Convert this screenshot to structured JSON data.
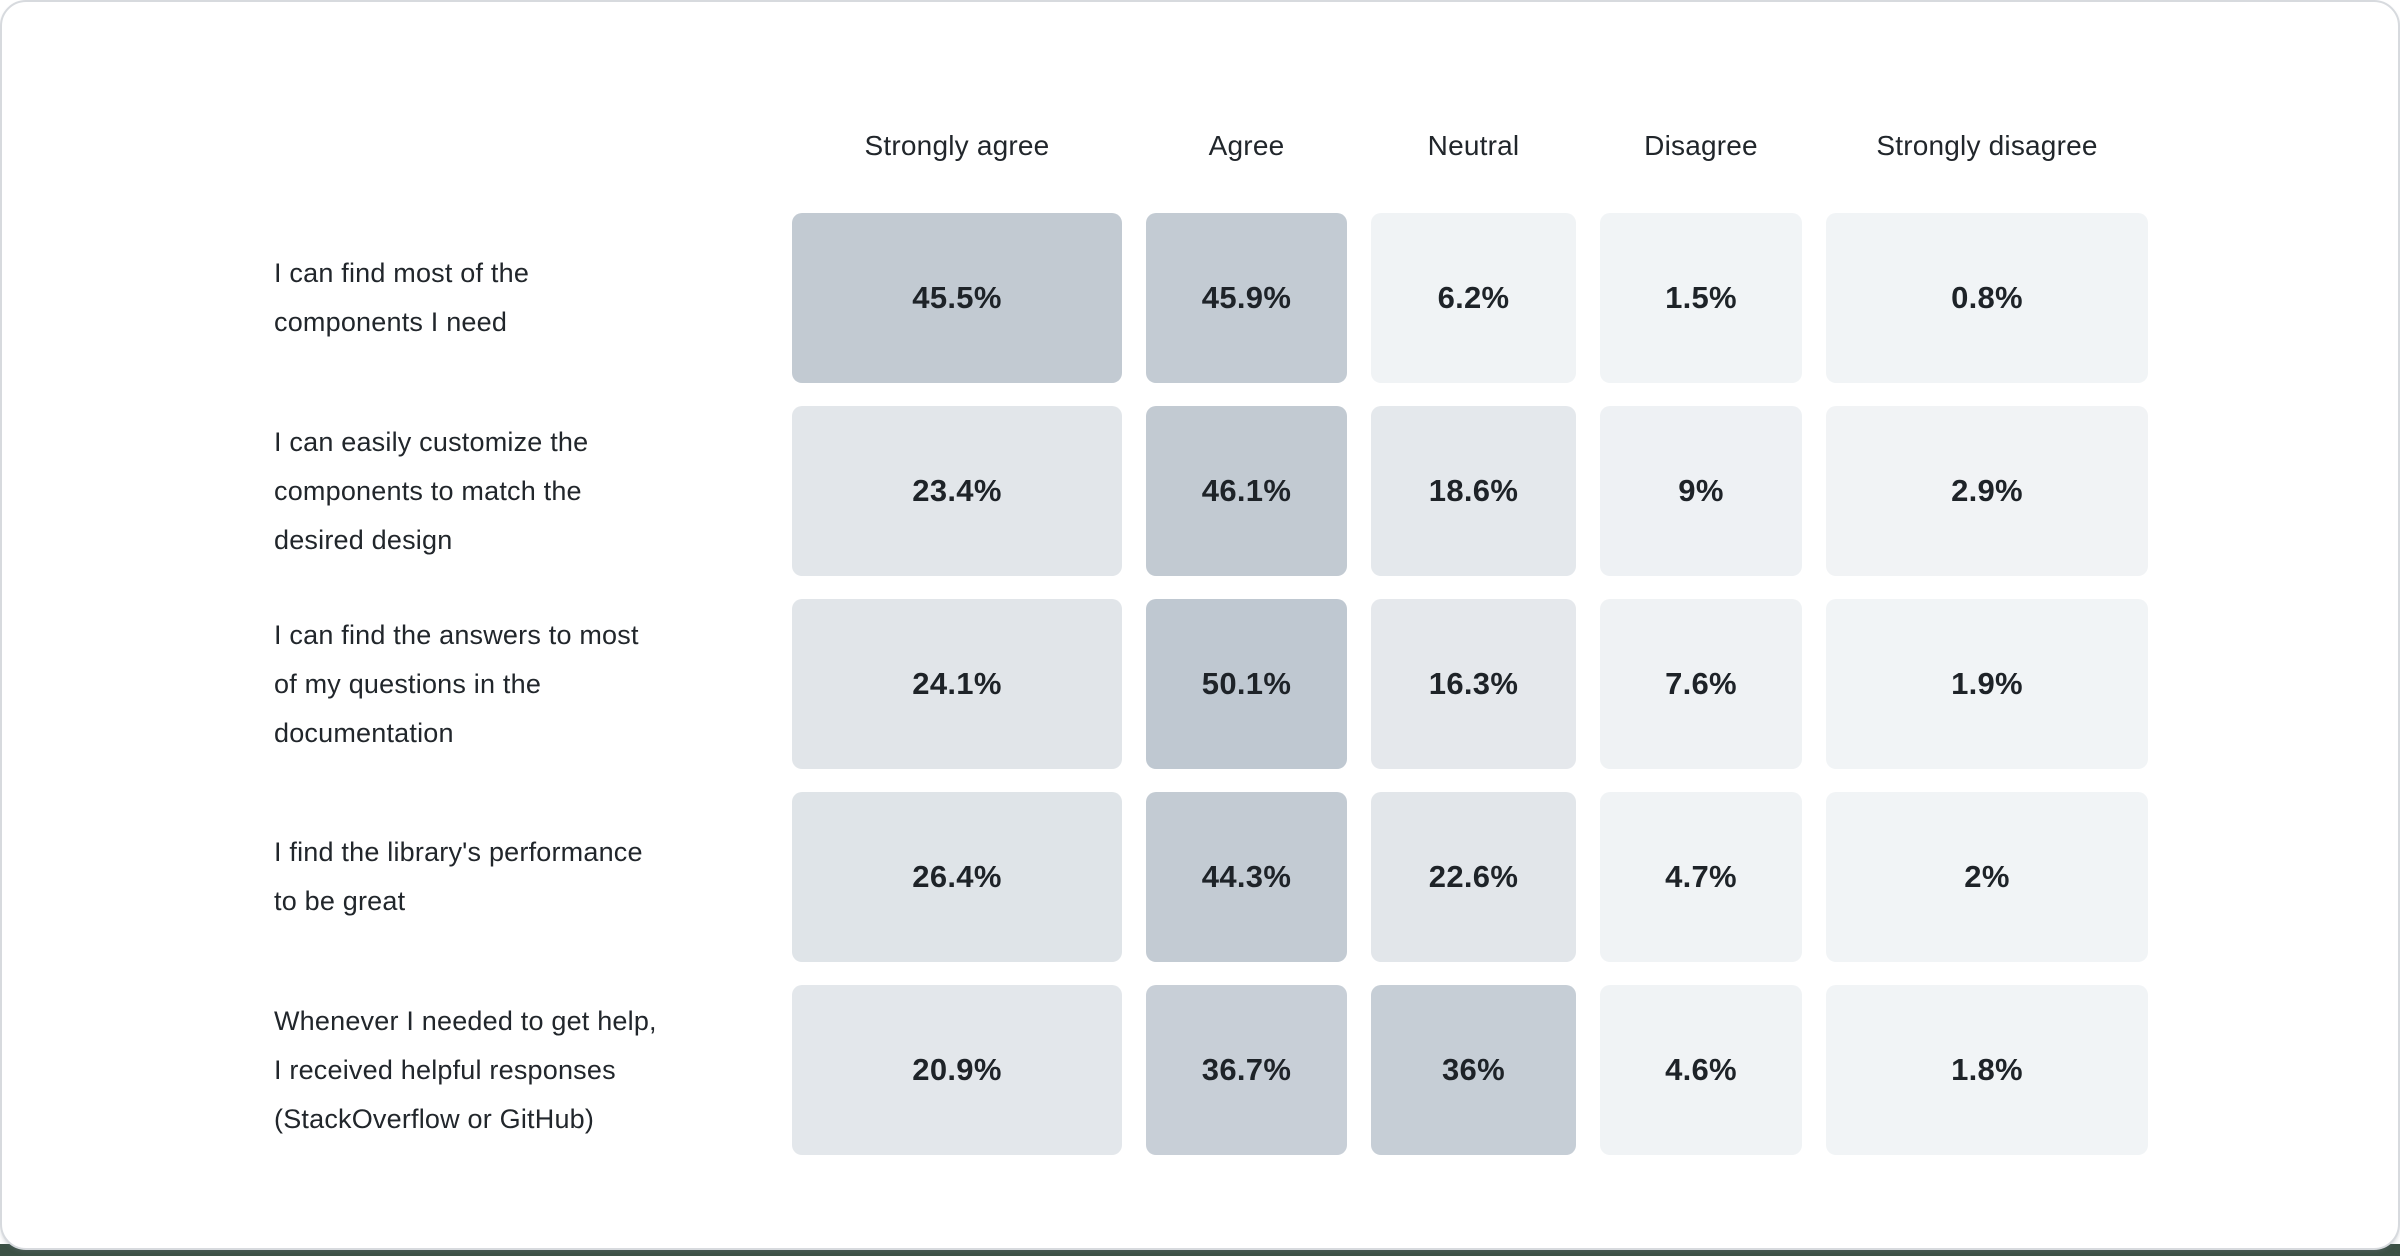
{
  "page": {
    "card_background": "#ffffff",
    "card_border_color": "#d7dade",
    "background_accent_color": "#3c5145",
    "text_color": "#21262b"
  },
  "chart_data": {
    "type": "heatmap",
    "title": "",
    "legend": "none",
    "grid": "off",
    "color_scale": {
      "min_color": "#f2f4f6",
      "max_color": "#bfc8d1",
      "domain": [
        0,
        50.1
      ]
    },
    "columns": [
      "Strongly agree",
      "Agree",
      "Neutral",
      "Disagree",
      "Strongly disagree"
    ],
    "rows": [
      {
        "label": "I can find most of the\ncomponents I need",
        "values": [
          45.5,
          45.9,
          6.2,
          1.5,
          0.8
        ],
        "value_labels": [
          "45.5%",
          "45.9%",
          "6.2%",
          "1.5%",
          "0.8%"
        ],
        "cell_colors": [
          "#c2cad2",
          "#c3cbd3",
          "#f0f3f5",
          "#f1f4f6",
          "#f1f4f6"
        ]
      },
      {
        "label": "I can easily customize the\ncomponents to match the\ndesired design",
        "values": [
          23.4,
          46.1,
          18.6,
          9,
          2.9
        ],
        "value_labels": [
          "23.4%",
          "46.1%",
          "18.6%",
          "9%",
          "2.9%"
        ],
        "cell_colors": [
          "#e2e6ea",
          "#c2cad2",
          "#e4e8ec",
          "#eef1f4",
          "#f1f3f5"
        ]
      },
      {
        "label": "I can find the answers to most\nof my questions in the\ndocumentation",
        "values": [
          24.1,
          50.1,
          16.3,
          7.6,
          1.9
        ],
        "value_labels": [
          "24.1%",
          "50.1%",
          "16.3%",
          "7.6%",
          "1.9%"
        ],
        "cell_colors": [
          "#e1e5e9",
          "#bfc8d1",
          "#e5e8ec",
          "#eff2f4",
          "#f1f4f6"
        ]
      },
      {
        "label": "I find the library's performance\nto be great",
        "values": [
          26.4,
          44.3,
          22.6,
          4.7,
          2
        ],
        "value_labels": [
          "26.4%",
          "44.3%",
          "22.6%",
          "4.7%",
          "2%"
        ],
        "cell_colors": [
          "#dfe4e8",
          "#c3cbd3",
          "#e2e6ea",
          "#f0f3f5",
          "#f1f4f6"
        ]
      },
      {
        "label": "Whenever I needed to get help,\nI received helpful responses\n(StackOverflow or GitHub)",
        "values": [
          20.9,
          36.7,
          36,
          4.6,
          1.8
        ],
        "value_labels": [
          "20.9%",
          "36.7%",
          "36%",
          "4.6%",
          "1.8%"
        ],
        "cell_colors": [
          "#e3e7eb",
          "#c8cfd7",
          "#c6ced6",
          "#f0f3f5",
          "#f1f4f6"
        ]
      }
    ]
  }
}
